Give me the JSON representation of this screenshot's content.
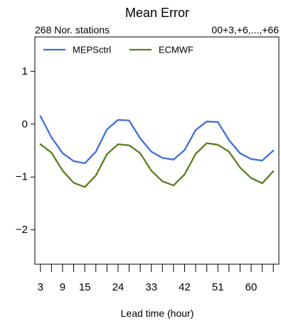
{
  "chart_data": {
    "type": "line",
    "title": "Mean Error",
    "subtitle_left": "268 Nor. stations",
    "subtitle_right": "00+3,+6,...,+66",
    "xlabel": "Lead time (hour)",
    "ylabel": "",
    "x": [
      3,
      6,
      9,
      12,
      15,
      18,
      21,
      24,
      27,
      30,
      33,
      36,
      39,
      42,
      45,
      48,
      51,
      54,
      57,
      60,
      63,
      66
    ],
    "x_tick_labels": [
      3,
      9,
      15,
      24,
      33,
      42,
      51,
      60
    ],
    "xlim": [
      1.5,
      67.5
    ],
    "ylim": [
      -2.65,
      1.65
    ],
    "y_ticks": [
      -2,
      -1,
      0,
      1
    ],
    "y_tick_labels": [
      "−2",
      "−1",
      "0",
      "1"
    ],
    "grid": false,
    "legend_position": "top-left",
    "series": [
      {
        "name": "MEPSctrl",
        "color": "#3d6fd6",
        "values": [
          0.15,
          -0.25,
          -0.55,
          -0.7,
          -0.74,
          -0.52,
          -0.1,
          0.08,
          0.07,
          -0.27,
          -0.52,
          -0.64,
          -0.67,
          -0.49,
          -0.11,
          0.05,
          0.04,
          -0.3,
          -0.55,
          -0.66,
          -0.69,
          -0.5
        ]
      },
      {
        "name": "ECMWF",
        "color": "#5a7d1e",
        "values": [
          -0.38,
          -0.54,
          -0.88,
          -1.11,
          -1.19,
          -0.97,
          -0.57,
          -0.38,
          -0.4,
          -0.55,
          -0.88,
          -1.08,
          -1.16,
          -0.95,
          -0.56,
          -0.36,
          -0.39,
          -0.52,
          -0.82,
          -1.02,
          -1.12,
          -0.89
        ]
      }
    ]
  }
}
